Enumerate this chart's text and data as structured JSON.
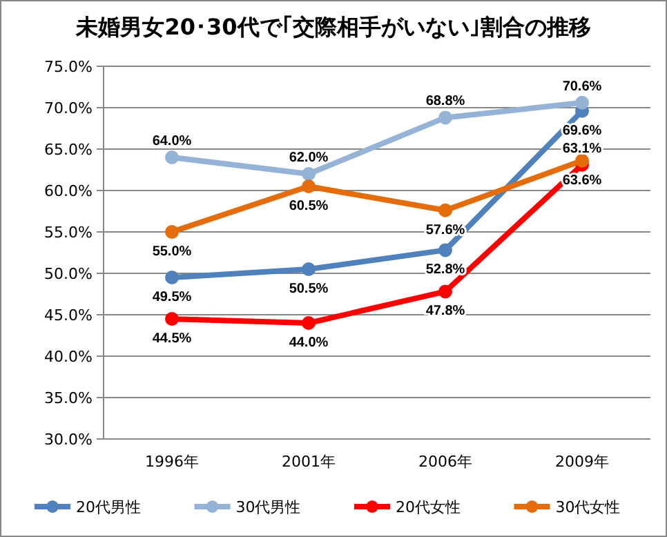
{
  "chart_data": {
    "type": "line",
    "title": "未婚男女20･30代で｢交際相手がいない｣割合の推移",
    "categories": [
      "1996年",
      "2001年",
      "2006年",
      "2009年"
    ],
    "series": [
      {
        "name": "20代男性",
        "color": "#4f81bd",
        "values": [
          49.5,
          50.5,
          52.8,
          69.6
        ],
        "value_labels": [
          "49.5%",
          "50.5%",
          "52.8%",
          "69.6%"
        ]
      },
      {
        "name": "30代男性",
        "color": "#95b3d7",
        "values": [
          64.0,
          62.0,
          68.8,
          70.6
        ],
        "value_labels": [
          "64.0%",
          "62.0%",
          "68.8%",
          "70.6%"
        ]
      },
      {
        "name": "20代女性",
        "color": "#ff0000",
        "values": [
          44.5,
          44.0,
          47.8,
          63.1
        ],
        "value_labels": [
          "44.5%",
          "44.0%",
          "47.8%",
          "63.1%"
        ]
      },
      {
        "name": "30代女性",
        "color": "#e46c0a",
        "values": [
          55.0,
          60.5,
          57.6,
          63.6
        ],
        "value_labels": [
          "55.0%",
          "60.5%",
          "57.6%",
          "63.6%"
        ]
      }
    ],
    "ylim": [
      30,
      75
    ],
    "yticks": [
      {
        "value": 30,
        "label": "30.0%"
      },
      {
        "value": 35,
        "label": "35.0%"
      },
      {
        "value": 40,
        "label": "40.0%"
      },
      {
        "value": 45,
        "label": "45.0%"
      },
      {
        "value": 50,
        "label": "50.0%"
      },
      {
        "value": 55,
        "label": "55.0%"
      },
      {
        "value": 60,
        "label": "60.0%"
      },
      {
        "value": 65,
        "label": "65.0%"
      },
      {
        "value": 70,
        "label": "70.0%"
      },
      {
        "value": 75,
        "label": "75.0%"
      }
    ],
    "grid": "y",
    "legend": "bottom",
    "marker": "circle",
    "line_style": "solid"
  }
}
